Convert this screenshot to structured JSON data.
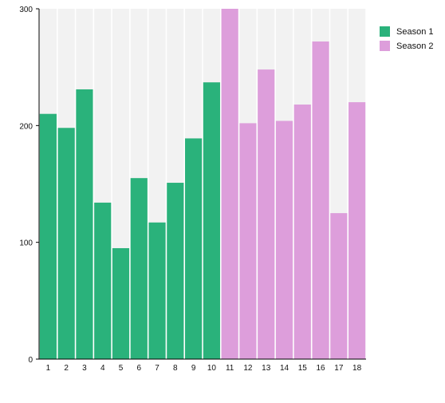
{
  "chart_data": {
    "type": "bar",
    "categories": [
      "1",
      "2",
      "3",
      "4",
      "5",
      "6",
      "7",
      "8",
      "9",
      "10",
      "11",
      "12",
      "13",
      "14",
      "15",
      "16",
      "17",
      "18"
    ],
    "series": [
      {
        "name": "Season 1",
        "color": "#2ab27b",
        "values": [
          210,
          198,
          231,
          134,
          95,
          155,
          117,
          151,
          189,
          237,
          null,
          null,
          null,
          null,
          null,
          null,
          null,
          null
        ]
      },
      {
        "name": "Season 2",
        "color": "#dd9edb",
        "values": [
          null,
          null,
          null,
          null,
          null,
          null,
          null,
          null,
          null,
          null,
          300,
          202,
          248,
          204,
          218,
          272,
          125,
          220
        ]
      }
    ],
    "title": "",
    "xlabel": "",
    "ylabel": "",
    "ylim": [
      0,
      300
    ],
    "yticks": [
      0,
      100,
      200,
      300
    ],
    "background_bar_color": "#f2f2f2",
    "grid": false,
    "legend": "top-right"
  }
}
